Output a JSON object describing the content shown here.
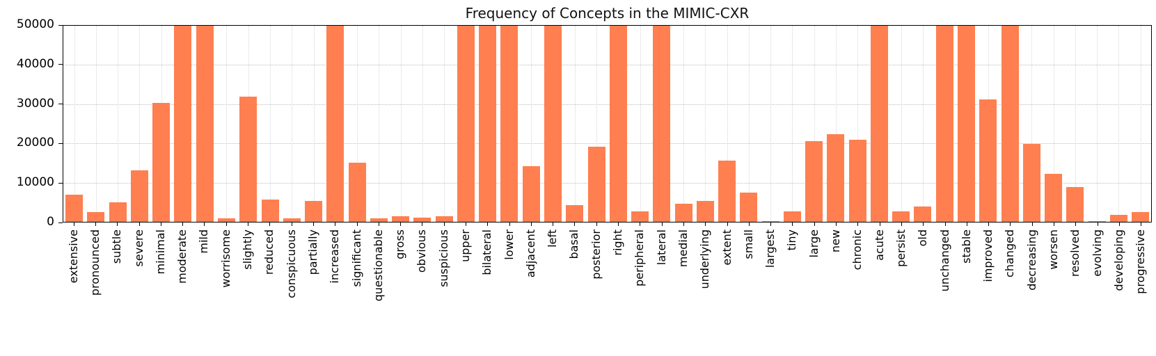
{
  "chart_data": {
    "type": "bar",
    "title": "Frequency of Concepts in the MIMIC-CXR",
    "xlabel": "",
    "ylabel": "",
    "ylim": [
      0,
      50000
    ],
    "yticks": [
      0,
      10000,
      20000,
      30000,
      40000,
      50000
    ],
    "grid": "dotted",
    "legend": "none",
    "bar_color": "#ff7f50",
    "note": "Bars shown at 50000 are clipped at the y-axis upper limit",
    "categories": [
      "extensive",
      "pronounced",
      "subtle",
      "severe",
      "minimal",
      "moderate",
      "mild",
      "worrisome",
      "slightly",
      "reduced",
      "conspicuous",
      "partially",
      "increased",
      "significant",
      "questionable",
      "gross",
      "obvious",
      "suspicious",
      "upper",
      "bilateral",
      "lower",
      "adjacent",
      "left",
      "basal",
      "posterior",
      "right",
      "peripheral",
      "lateral",
      "medial",
      "underlying",
      "extent",
      "small",
      "largest",
      "tiny",
      "large",
      "new",
      "chronic",
      "acute",
      "persist",
      "old",
      "unchanged",
      "stable",
      "improved",
      "changed",
      "decreasing",
      "worsen",
      "resolved",
      "evolving",
      "developing",
      "progressive"
    ],
    "values": [
      7000,
      2500,
      5000,
      13200,
      30400,
      50000,
      50000,
      900,
      32000,
      5600,
      900,
      5400,
      50000,
      15100,
      900,
      1400,
      1100,
      1400,
      50000,
      50000,
      50000,
      14200,
      50000,
      4200,
      19100,
      50000,
      2600,
      50000,
      4700,
      5400,
      15600,
      7500,
      250,
      2600,
      20500,
      22300,
      21000,
      50000,
      2600,
      3900,
      50000,
      50000,
      31200,
      50000,
      19800,
      12300,
      8900,
      200,
      1800,
      2500
    ]
  }
}
